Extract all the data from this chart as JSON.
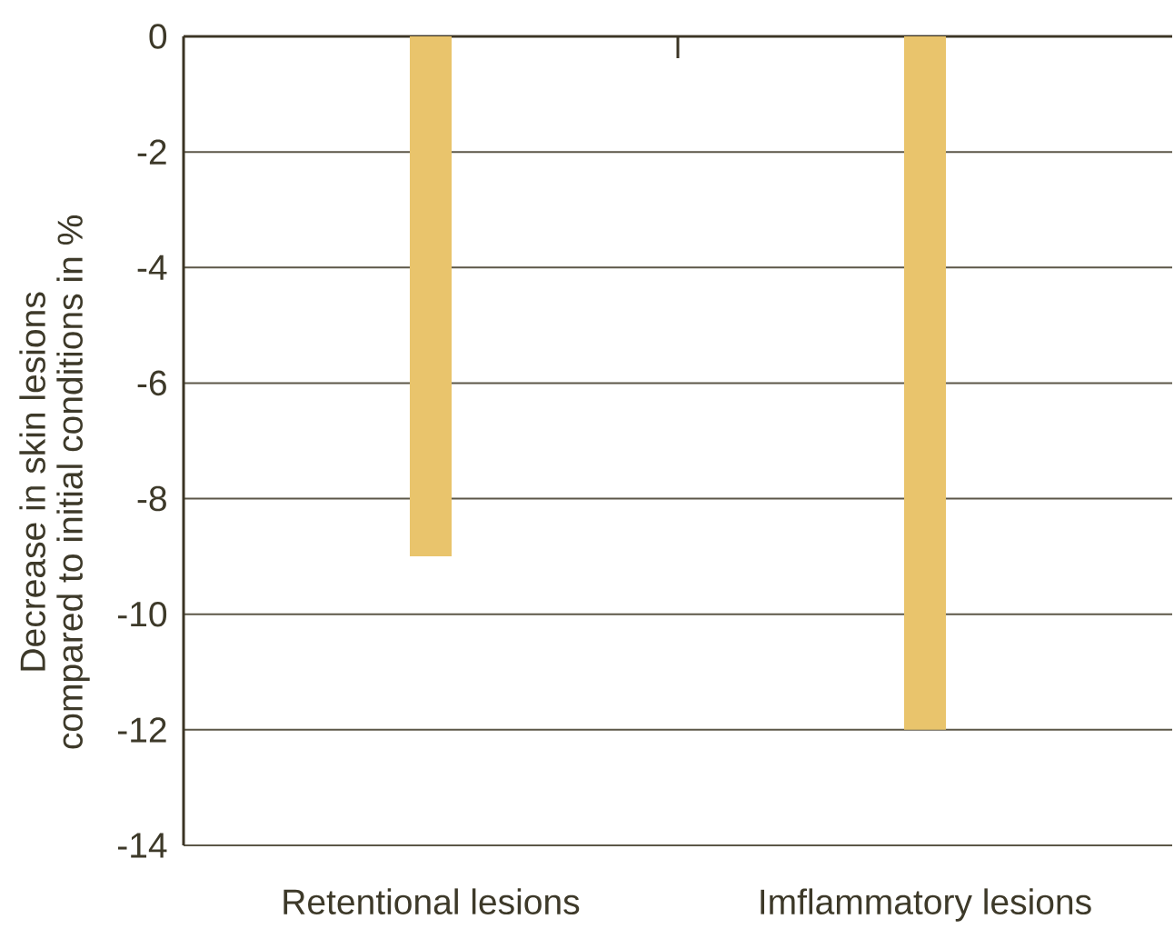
{
  "chart_data": {
    "type": "bar",
    "categories": [
      "Retentional lesions",
      "Imflammatory lesions"
    ],
    "values": [
      -9,
      -12
    ],
    "color": "#e9c46c",
    "ylabel": "Decrease in skin lesions compared to initial conditions in %",
    "ylim": [
      -14,
      0
    ],
    "yticks": [
      0,
      -2,
      -4,
      -6,
      -8,
      -10,
      -12,
      -14
    ],
    "grid": "y"
  }
}
